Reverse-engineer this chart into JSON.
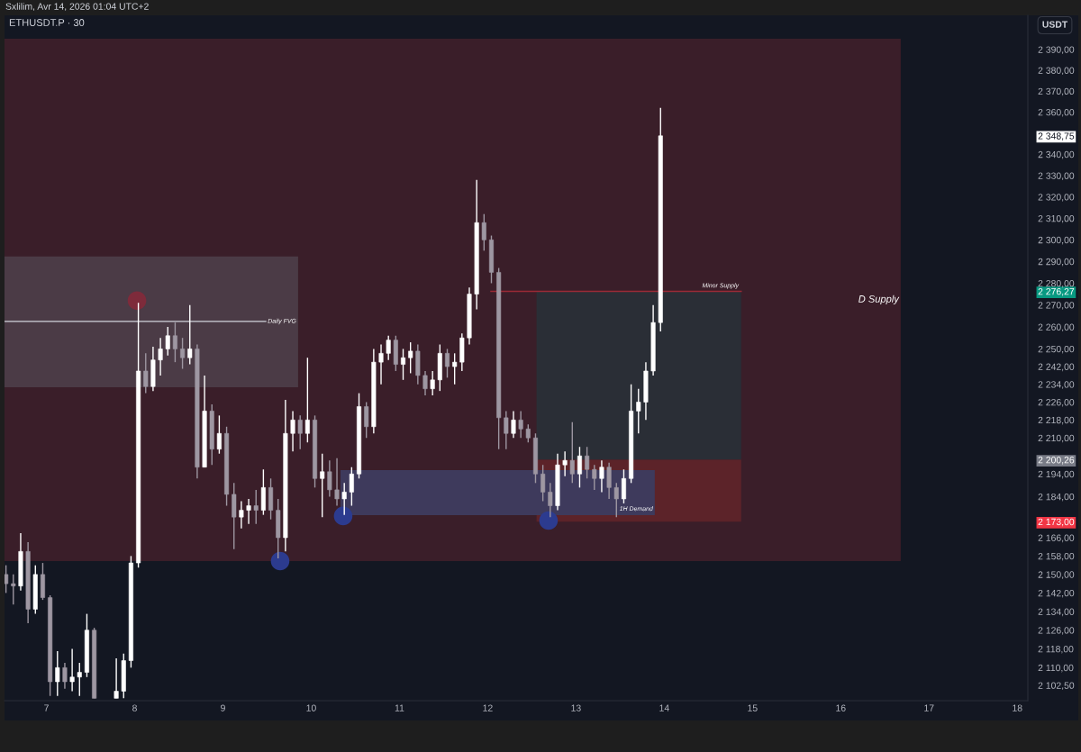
{
  "chart_data": {
    "type": "candlestick",
    "title": "ETHUSDT.P · 30",
    "ylabel": "USDT",
    "log": true,
    "annotations": [
      "Sxlilim, Avr 14, 2026 01:04 UTC+2",
      {
        "text": "D Supply",
        "x": 16.68,
        "y": 2272.4
      },
      {
        "text": "Daily FVG",
        "x": 9.852,
        "y": 2262.5
      },
      {
        "text": "1H Demand",
        "x": 13.893,
        "y": 2178.5
      }
    ],
    "xlim": [
      6.525,
      18.12
    ],
    "xticks": [
      7,
      8,
      9,
      10,
      11,
      12,
      13,
      14,
      15,
      16,
      17,
      18
    ],
    "ylim": [
      2096,
      2406.5
    ],
    "yticks": [
      {
        "value": 2102.5,
        "label": "2 102,50"
      },
      {
        "value": 2110,
        "label": "2 110,00"
      },
      {
        "value": 2118,
        "label": "2 118,00"
      },
      {
        "value": 2126,
        "label": "2 126,00"
      },
      {
        "value": 2134,
        "label": "2 134,00"
      },
      {
        "value": 2142,
        "label": "2 142,00"
      },
      {
        "value": 2150,
        "label": "2 150,00"
      },
      {
        "value": 2158,
        "label": "2 158,00"
      },
      {
        "value": 2166,
        "label": "2 166,00"
      },
      {
        "value": 2173,
        "label": "2 173,00"
      },
      {
        "value": 2184,
        "label": "2 184,00"
      },
      {
        "value": 2194,
        "label": "2 194,00"
      },
      {
        "value": 2200.26,
        "label": "2 200,26"
      },
      {
        "value": 2210,
        "label": "2 210,00"
      },
      {
        "value": 2218,
        "label": "2 218,00"
      },
      {
        "value": 2226,
        "label": "2 226,00"
      },
      {
        "value": 2234,
        "label": "2 234,00"
      },
      {
        "value": 2242,
        "label": "2 242,00"
      },
      {
        "value": 2250,
        "label": "2 250,00"
      },
      {
        "value": 2260,
        "label": "2 260,00"
      },
      {
        "value": 2270,
        "label": "2 270,00"
      },
      {
        "value": 2276.27,
        "label": "2 276,27"
      },
      {
        "value": 2280,
        "label": "2 280,00"
      },
      {
        "value": 2290,
        "label": "2 290,00"
      },
      {
        "value": 2300,
        "label": "2 300,00"
      },
      {
        "value": 2310,
        "label": "2 310,00"
      },
      {
        "value": 2320,
        "label": "2 320,00"
      },
      {
        "value": 2330,
        "label": "2 330,00"
      },
      {
        "value": 2340,
        "label": "2 340,00"
      },
      {
        "value": 2348.75,
        "label": "2 348,75"
      },
      {
        "value": 2360,
        "label": "2 360,00"
      },
      {
        "value": 2370,
        "label": "2 370,00"
      },
      {
        "value": 2380,
        "label": "2 380,00"
      },
      {
        "value": 2390,
        "label": "2 390,00"
      }
    ],
    "series": [
      {
        "type": "area",
        "x": [
          6.525,
          16.68
        ],
        "values": [
          null,
          null
        ],
        "lower": [
          2155.8,
          2155.8
        ],
        "upper": [
          2395.2,
          2395.2
        ],
        "color": "#3a1e29"
      },
      {
        "type": "area",
        "x": [
          6.525,
          9.852
        ],
        "values": [
          null,
          null
        ],
        "lower": [
          2232.7,
          2232.7
        ],
        "upper": [
          2292.3,
          2292.3
        ],
        "color": "#4b3b46"
      },
      {
        "type": "line",
        "x": [
          6.525,
          9.485
        ],
        "values": [
          2262.5,
          2262.5
        ],
        "color": "#d1d4dc"
      },
      {
        "type": "area",
        "x": [
          12.553,
          14.872
        ],
        "values": [
          null,
          null
        ],
        "lower": [
          2200.26,
          2200.26
        ],
        "upper": [
          2276.27,
          2276.27
        ],
        "color": "#2a2e36"
      },
      {
        "type": "area",
        "x": [
          12.553,
          14.872
        ],
        "values": [
          null,
          null
        ],
        "lower": [
          2173,
          2173
        ],
        "upper": [
          2200.26,
          2200.26
        ],
        "color": "#5c2329"
      },
      {
        "type": "area",
        "x": [
          10.332,
          13.893
        ],
        "values": [
          null,
          null
        ],
        "lower": [
          2175.9,
          2175.9
        ],
        "upper": [
          2195.7,
          2195.7
        ],
        "color": "#3e3a5c"
      },
      {
        "name": "Minor Supply",
        "type": "line",
        "x": [
          12.036,
          14.872
        ],
        "values": [
          2276.27,
          2276.27
        ],
        "color": "#9b2a36"
      },
      {
        "type": "scatter",
        "marker": "circle",
        "x": [
          8.026
        ],
        "values": [
          2272
        ],
        "color": "#7e2b3b"
      },
      {
        "type": "scatter",
        "marker": "circle",
        "x": [
          9.648,
          10.362,
          12.689
        ],
        "values": [
          2155.8,
          2175.5,
          2173.5
        ],
        "color": "#2c3b8f"
      },
      {
        "x": [
          6.5417,
          6.625,
          6.7083,
          6.7917,
          6.875,
          6.9583,
          7.0417,
          7.125,
          7.2083,
          7.2917,
          7.375,
          7.4583,
          7.5417,
          7.7917,
          7.875,
          7.9583,
          8.0417,
          8.125,
          8.2083,
          8.2917,
          8.375,
          8.4583,
          8.5417,
          8.625,
          8.7083,
          8.7917,
          8.875,
          8.9583,
          9.0417,
          9.125,
          9.2083,
          9.2917,
          9.375,
          9.4583,
          9.5417,
          9.625,
          9.7083,
          9.7917,
          9.875,
          9.9583,
          10.0417,
          10.125,
          10.2083,
          10.2917,
          10.375,
          10.4583,
          10.5417,
          10.625,
          10.7083,
          10.7917,
          10.875,
          10.9583,
          11.0417,
          11.125,
          11.2083,
          11.2917,
          11.375,
          11.4583,
          11.5417,
          11.625,
          11.7083,
          11.7917,
          11.875,
          11.9583,
          12.0417,
          12.125,
          12.2083,
          12.2917,
          12.375,
          12.4583,
          12.5417,
          12.625,
          12.7083,
          12.7917,
          12.875,
          12.9583,
          13.0417,
          13.125,
          13.2083,
          13.2917,
          13.375,
          13.4583,
          13.5417,
          13.625,
          13.7083,
          13.7917,
          13.875,
          13.9583
        ],
        "ohlc": [
          [
            2150,
            2154,
            2142,
            2146
          ],
          [
            2146,
            2150,
            2137,
            2145
          ],
          [
            2145,
            2168,
            2143,
            2160
          ],
          [
            2160,
            2164,
            2129,
            2135
          ],
          [
            2135,
            2154,
            2133,
            2150
          ],
          [
            2150,
            2155,
            2139,
            2140
          ],
          [
            2140,
            2141,
            2098,
            2104
          ],
          [
            2104,
            2117,
            2098,
            2110
          ],
          [
            2110,
            2112,
            2101,
            2104
          ],
          [
            2104,
            2118,
            2100,
            2106
          ],
          [
            2106,
            2112,
            2098,
            2108
          ],
          [
            2108,
            2133,
            2106,
            2126
          ],
          [
            2126,
            2127,
            2097,
            2097
          ],
          [
            2097,
            2114,
            2097,
            2100
          ],
          [
            2100,
            2116,
            2097,
            2113
          ],
          [
            2113,
            2158,
            2110,
            2155
          ],
          [
            2155,
            2271,
            2153,
            2240
          ],
          [
            2240,
            2248,
            2230,
            2233
          ],
          [
            2233,
            2251,
            2231,
            2245
          ],
          [
            2245,
            2255,
            2238,
            2250
          ],
          [
            2250,
            2260,
            2247,
            2256
          ],
          [
            2256,
            2262,
            2244,
            2250
          ],
          [
            2250,
            2255,
            2241,
            2246
          ],
          [
            2246,
            2270,
            2243,
            2250
          ],
          [
            2250,
            2252,
            2192,
            2197
          ],
          [
            2197,
            2238,
            2197,
            2222
          ],
          [
            2222,
            2225,
            2198,
            2205
          ],
          [
            2205,
            2220,
            2203,
            2212
          ],
          [
            2212,
            2215,
            2180,
            2185
          ],
          [
            2185,
            2190,
            2161,
            2175
          ],
          [
            2175,
            2182,
            2170,
            2178
          ],
          [
            2178,
            2183,
            2172,
            2180
          ],
          [
            2180,
            2187,
            2172,
            2178
          ],
          [
            2178,
            2196,
            2176,
            2188
          ],
          [
            2188,
            2192,
            2174,
            2178
          ],
          [
            2178,
            2183,
            2157,
            2166
          ],
          [
            2166,
            2227,
            2160,
            2212
          ],
          [
            2212,
            2222,
            2204,
            2218
          ],
          [
            2218,
            2220,
            2205,
            2212
          ],
          [
            2212,
            2246,
            2208,
            2218
          ],
          [
            2218,
            2220,
            2188,
            2192
          ],
          [
            2192,
            2203,
            2175,
            2195
          ],
          [
            2195,
            2200,
            2184,
            2187
          ],
          [
            2187,
            2201,
            2180,
            2183
          ],
          [
            2183,
            2190,
            2176,
            2186
          ],
          [
            2186,
            2197,
            2180,
            2194
          ],
          [
            2194,
            2230,
            2192,
            2224
          ],
          [
            2224,
            2226,
            2210,
            2215
          ],
          [
            2215,
            2250,
            2212,
            2244
          ],
          [
            2244,
            2252,
            2234,
            2248
          ],
          [
            2248,
            2256,
            2245,
            2254
          ],
          [
            2254,
            2256,
            2240,
            2243
          ],
          [
            2243,
            2250,
            2236,
            2246
          ],
          [
            2246,
            2253,
            2239,
            2249
          ],
          [
            2249,
            2252,
            2234,
            2238
          ],
          [
            2238,
            2240,
            2229,
            2232
          ],
          [
            2232,
            2240,
            2229,
            2236
          ],
          [
            2236,
            2252,
            2231,
            2248
          ],
          [
            2248,
            2250,
            2237,
            2242
          ],
          [
            2242,
            2248,
            2234,
            2244
          ],
          [
            2244,
            2257,
            2240,
            2255
          ],
          [
            2255,
            2278,
            2252,
            2275
          ],
          [
            2275,
            2328,
            2268,
            2308
          ],
          [
            2308,
            2312,
            2295,
            2300
          ],
          [
            2300,
            2302,
            2280,
            2285
          ],
          [
            2285,
            2287,
            2205,
            2219
          ],
          [
            2219,
            2222,
            2205,
            2212
          ],
          [
            2212,
            2222,
            2210,
            2218
          ],
          [
            2218,
            2222,
            2210,
            2214
          ],
          [
            2214,
            2216,
            2208,
            2210
          ],
          [
            2210,
            2212,
            2190,
            2194
          ],
          [
            2194,
            2198,
            2182,
            2186
          ],
          [
            2186,
            2190,
            2175,
            2180
          ],
          [
            2180,
            2203,
            2178,
            2198
          ],
          [
            2198,
            2204,
            2193,
            2200
          ],
          [
            2200,
            2217,
            2190,
            2194
          ],
          [
            2194,
            2206,
            2188,
            2202
          ],
          [
            2202,
            2206,
            2192,
            2196
          ],
          [
            2196,
            2198,
            2187,
            2192
          ],
          [
            2192,
            2200,
            2186,
            2197
          ],
          [
            2197,
            2199,
            2183,
            2188
          ],
          [
            2188,
            2190,
            2175,
            2183
          ],
          [
            2183,
            2196,
            2181,
            2192
          ],
          [
            2192,
            2234,
            2190,
            2222
          ],
          [
            2222,
            2232,
            2212,
            2226
          ],
          [
            2226,
            2244,
            2218,
            2240
          ],
          [
            2240,
            2270,
            2238,
            2262
          ],
          [
            2262,
            2362,
            2258,
            2348.75
          ]
        ],
        "colors": [
          "#9e97a2",
          "#9e97a2",
          "#ffffff",
          "#9e97a2",
          "#ffffff",
          "#9e97a2",
          "#9e97a2",
          "#ffffff",
          "#9e97a2",
          "#ffffff",
          "#ffffff",
          "#ffffff",
          "#9e97a2",
          "#ffffff",
          "#ffffff",
          "#ffffff",
          "#ffffff",
          "#9e97a2",
          "#ffffff",
          "#ffffff",
          "#ffffff",
          "#9e97a2",
          "#9e97a2",
          "#ffffff",
          "#9e97a2",
          "#ffffff",
          "#9e97a2",
          "#ffffff",
          "#9e97a2",
          "#9e97a2",
          "#ffffff",
          "#ffffff",
          "#9e97a2",
          "#ffffff",
          "#9e97a2",
          "#9e97a2",
          "#ffffff",
          "#ffffff",
          "#9e97a2",
          "#ffffff",
          "#9e97a2",
          "#ffffff",
          "#9e97a2",
          "#9e97a2",
          "#ffffff",
          "#ffffff",
          "#ffffff",
          "#9e97a2",
          "#ffffff",
          "#ffffff",
          "#ffffff",
          "#9e97a2",
          "#ffffff",
          "#ffffff",
          "#9e97a2",
          "#9e97a2",
          "#ffffff",
          "#ffffff",
          "#9e97a2",
          "#ffffff",
          "#ffffff",
          "#ffffff",
          "#ffffff",
          "#9e97a2",
          "#9e97a2",
          "#9e97a2",
          "#9e97a2",
          "#ffffff",
          "#9e97a2",
          "#9e97a2",
          "#9e97a2",
          "#9e97a2",
          "#9e97a2",
          "#ffffff",
          "#ffffff",
          "#9e97a2",
          "#ffffff",
          "#9e97a2",
          "#9e97a2",
          "#ffffff",
          "#9e97a2",
          "#9e97a2",
          "#ffffff",
          "#ffffff",
          "#ffffff",
          "#ffffff",
          "#ffffff",
          "#ffffff"
        ]
      }
    ]
  }
}
